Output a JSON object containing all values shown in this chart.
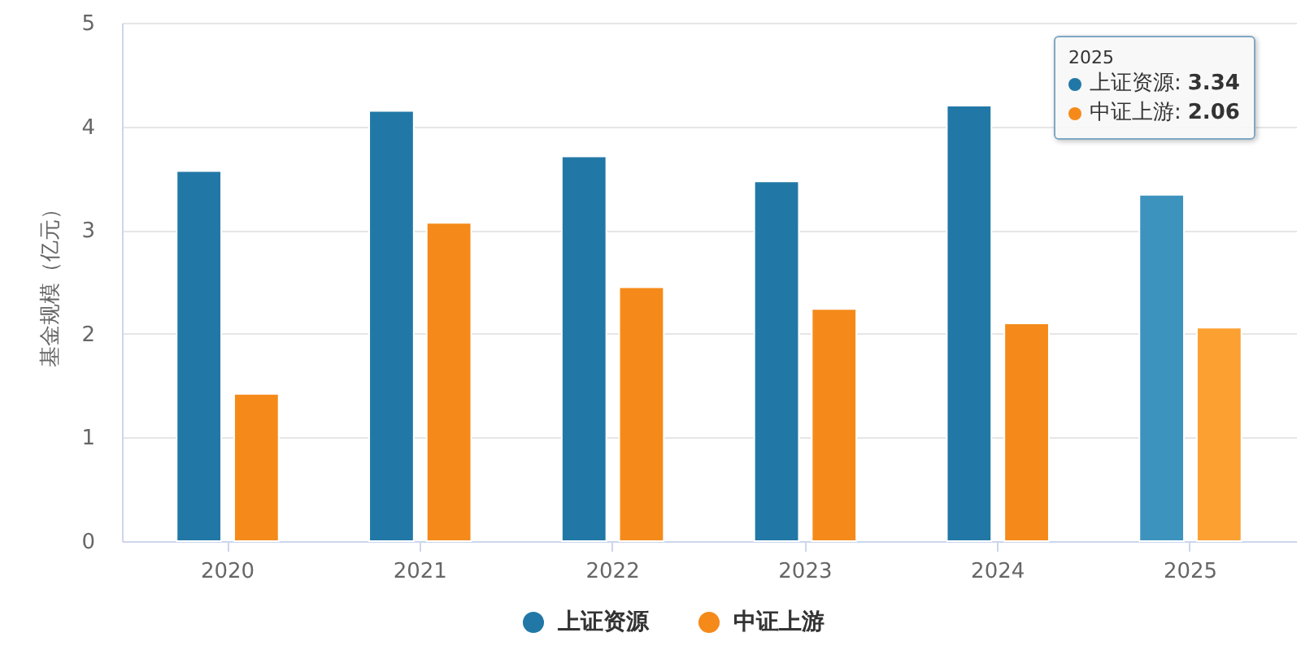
{
  "chart_data": {
    "type": "bar",
    "categories": [
      "2020",
      "2021",
      "2022",
      "2023",
      "2024",
      "2025"
    ],
    "ylabel": "基金规模（亿元）",
    "ylim": [
      0,
      5
    ],
    "yticks": [
      0,
      1,
      2,
      3,
      4,
      5
    ],
    "grid": "y",
    "legend": "bottom",
    "series": [
      {
        "name": "上证资源",
        "color": "#2178a6",
        "colors": [
          "#2178a6",
          "#2178a6",
          "#2178a6",
          "#2178a6",
          "#2178a6",
          "#3c93be"
        ],
        "values": [
          3.57,
          4.15,
          3.71,
          3.47,
          4.2,
          3.34
        ]
      },
      {
        "name": "中证上游",
        "color": "#f58a1a",
        "colors": [
          "#f58a1a",
          "#f58a1a",
          "#f58a1a",
          "#f58a1a",
          "#f58a1a",
          "#fca032"
        ],
        "values": [
          1.42,
          3.07,
          2.45,
          2.24,
          2.1,
          2.06
        ]
      }
    ],
    "annotations": [
      "2025",
      "上证资源: 3.34",
      "中证上游: 2.06"
    ]
  }
}
